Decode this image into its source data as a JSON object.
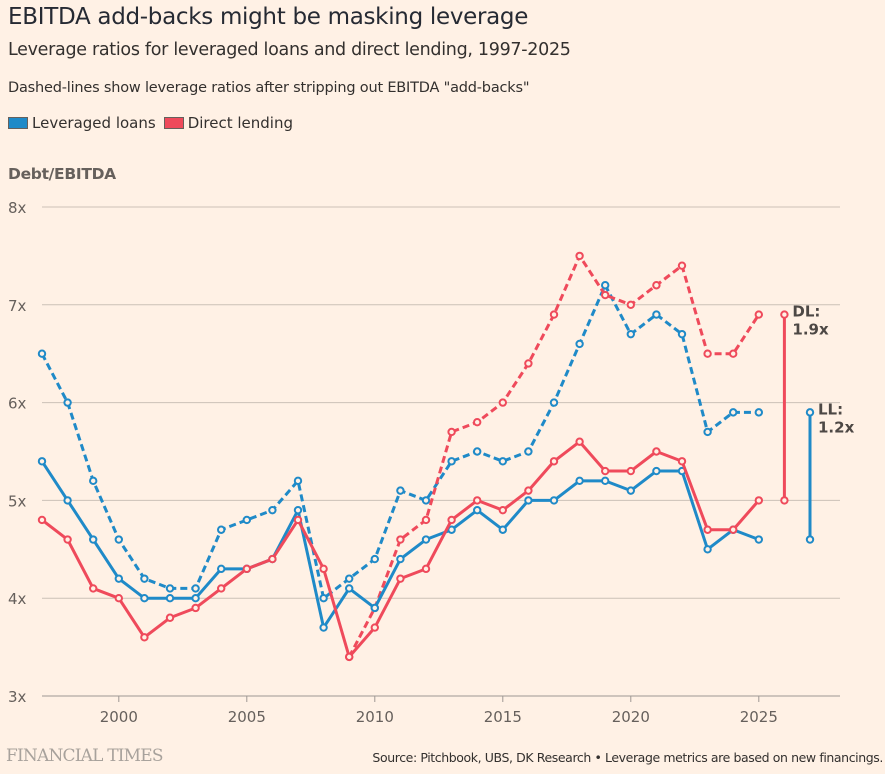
{
  "header": {
    "title": "EBITDA add-backs might be masking leverage",
    "subtitle": "Leverage ratios for leveraged loans and direct lending, 1997-2025",
    "note": "Dashed-lines show leverage ratios after stripping out EBITDA \"add-backs\""
  },
  "legend": [
    {
      "label": "Leveraged loans",
      "color": "#1f8ac8"
    },
    {
      "label": "Direct lending",
      "color": "#ef4a5b"
    }
  ],
  "footer": {
    "brand": "FINANCIAL TIMES",
    "source": "Source: Pitchbook, UBS, DK Research • Leverage metrics are based on new financings."
  },
  "chart_data": {
    "type": "line",
    "title": "EBITDA add-backs might be masking leverage",
    "ylabel": "Debt/EBITDA",
    "xlabel": "",
    "ylim": [
      3,
      8
    ],
    "xlim": [
      1997,
      2028
    ],
    "yticks": [
      3,
      4,
      5,
      6,
      7,
      8
    ],
    "ytick_labels": [
      "3x",
      "4x",
      "5x",
      "6x",
      "7x",
      "8x"
    ],
    "xticks": [
      2000,
      2005,
      2010,
      2015,
      2020,
      2025
    ],
    "xtick_labels": [
      "2000",
      "2005",
      "2010",
      "2015",
      "2020",
      "2025"
    ],
    "grid": true,
    "series": [
      {
        "name": "Leveraged loans (add-backs stripped)",
        "color": "#1f8ac8",
        "style": "dashed",
        "x": [
          1997,
          1998,
          1999,
          2000,
          2001,
          2002,
          2003,
          2004,
          2005,
          2006,
          2007,
          2008,
          2009,
          2010,
          2011,
          2012,
          2013,
          2014,
          2015,
          2016,
          2017,
          2018,
          2019,
          2020,
          2021,
          2022,
          2023,
          2024,
          2025
        ],
        "y": [
          6.5,
          6.0,
          5.2,
          4.6,
          4.2,
          4.1,
          4.1,
          4.7,
          4.8,
          4.9,
          5.2,
          4.0,
          4.2,
          4.4,
          5.1,
          5.0,
          5.4,
          5.5,
          5.4,
          5.5,
          6.0,
          6.6,
          7.2,
          6.7,
          6.9,
          6.7,
          5.7,
          5.9,
          5.9
        ]
      },
      {
        "name": "Direct lending (add-backs stripped)",
        "color": "#ef4a5b",
        "style": "dashed",
        "x": [
          2009,
          2010,
          2011,
          2012,
          2013,
          2014,
          2015,
          2016,
          2017,
          2018,
          2019,
          2020,
          2021,
          2022,
          2023,
          2024,
          2025
        ],
        "y": [
          3.4,
          3.9,
          4.6,
          4.8,
          5.7,
          5.8,
          6.0,
          6.4,
          6.9,
          7.5,
          7.1,
          7.0,
          7.2,
          7.4,
          6.5,
          6.5,
          6.9
        ]
      },
      {
        "name": "Leveraged loans",
        "color": "#1f8ac8",
        "style": "solid",
        "x": [
          1997,
          1998,
          1999,
          2000,
          2001,
          2002,
          2003,
          2004,
          2005,
          2006,
          2007,
          2008,
          2009,
          2010,
          2011,
          2012,
          2013,
          2014,
          2015,
          2016,
          2017,
          2018,
          2019,
          2020,
          2021,
          2022,
          2023,
          2024,
          2025
        ],
        "y": [
          5.4,
          5.0,
          4.6,
          4.2,
          4.0,
          4.0,
          4.0,
          4.3,
          4.3,
          4.4,
          4.9,
          3.7,
          4.1,
          3.9,
          4.4,
          4.6,
          4.7,
          4.9,
          4.7,
          5.0,
          5.0,
          5.2,
          5.2,
          5.1,
          5.3,
          5.3,
          4.5,
          4.7,
          4.6
        ]
      },
      {
        "name": "Direct lending",
        "color": "#ef4a5b",
        "style": "solid",
        "x": [
          1997,
          1998,
          1999,
          2000,
          2001,
          2002,
          2003,
          2004,
          2005,
          2006,
          2007,
          2008,
          2009,
          2010,
          2011,
          2012,
          2013,
          2014,
          2015,
          2016,
          2017,
          2018,
          2019,
          2020,
          2021,
          2022,
          2023,
          2024,
          2025
        ],
        "y": [
          4.8,
          4.6,
          4.1,
          4.0,
          3.6,
          3.8,
          3.9,
          4.1,
          4.3,
          4.4,
          4.8,
          4.3,
          3.4,
          3.7,
          4.2,
          4.3,
          4.8,
          5.0,
          4.9,
          5.1,
          5.4,
          5.6,
          5.3,
          5.3,
          5.5,
          5.4,
          4.7,
          4.7,
          5.0
        ]
      }
    ],
    "annotations": [
      {
        "series": "Direct lending",
        "color": "#ef4a5b",
        "x": 2026,
        "from": 5.0,
        "to": 6.9,
        "label_line1": "DL:",
        "label_line2": "1.9x"
      },
      {
        "series": "Leveraged loans",
        "color": "#1f8ac8",
        "x": 2027,
        "from": 4.6,
        "to": 5.9,
        "label_line1": "LL:",
        "label_line2": "1.2x"
      }
    ]
  }
}
